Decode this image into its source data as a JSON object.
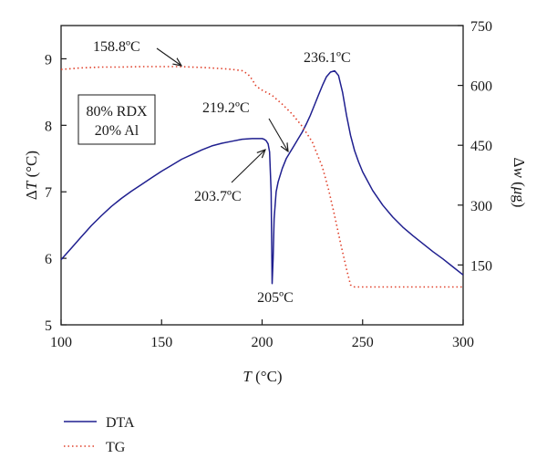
{
  "chart_data": {
    "type": "line",
    "xlabel_var": "T",
    "xlabel_unit": " (°C)",
    "ylabel_left_prefix": "Δ",
    "ylabel_left_var": "T",
    "ylabel_left_unit": " (°C)",
    "ylabel_right_prefix": "Δ",
    "ylabel_right_var": "w",
    "ylabel_right_unit_open": " (",
    "ylabel_right_unit_mu": "μ",
    "ylabel_right_unit_close": "g)",
    "xlim": [
      100,
      300
    ],
    "ylim_left": [
      5,
      9.5
    ],
    "ylim_right": [
      0,
      750
    ],
    "xticks": [
      "100",
      "150",
      "200",
      "250",
      "300"
    ],
    "yticks_left": [
      "5",
      "6",
      "7",
      "8",
      "9"
    ],
    "yticks_right": [
      "150",
      "300",
      "450",
      "600",
      "750"
    ],
    "series": [
      {
        "name": "DTA",
        "axis": "left",
        "color": "#1f1f8f",
        "style": "solid",
        "x": [
          100,
          105,
          110,
          115,
          120,
          125,
          130,
          135,
          140,
          145,
          150,
          155,
          160,
          165,
          170,
          175,
          180,
          185,
          190,
          195,
          200,
          201,
          202,
          203,
          203.7,
          204.5,
          205,
          205.5,
          206,
          207,
          208,
          210,
          212,
          214,
          216,
          218,
          220,
          222,
          224,
          226,
          228,
          230,
          232,
          234,
          236.1,
          238,
          240,
          242,
          244,
          246,
          248,
          250,
          255,
          260,
          265,
          270,
          275,
          280,
          285,
          290,
          295,
          300
        ],
        "y": [
          5.98,
          6.15,
          6.32,
          6.49,
          6.64,
          6.78,
          6.9,
          7.01,
          7.11,
          7.21,
          7.31,
          7.4,
          7.49,
          7.56,
          7.63,
          7.69,
          7.73,
          7.76,
          7.79,
          7.8,
          7.8,
          7.79,
          7.77,
          7.72,
          7.6,
          7.0,
          5.62,
          6.0,
          6.6,
          7.0,
          7.15,
          7.35,
          7.5,
          7.6,
          7.7,
          7.8,
          7.9,
          8.02,
          8.15,
          8.3,
          8.45,
          8.6,
          8.73,
          8.8,
          8.82,
          8.75,
          8.5,
          8.15,
          7.85,
          7.62,
          7.45,
          7.3,
          7.02,
          6.8,
          6.62,
          6.47,
          6.34,
          6.22,
          6.1,
          5.99,
          5.87,
          5.75
        ]
      },
      {
        "name": "TG",
        "axis": "right",
        "color": "#e0402a",
        "style": "dotted",
        "x": [
          100,
          110,
          120,
          130,
          140,
          150,
          158.8,
          165,
          170,
          180,
          185,
          190,
          193,
          195,
          197,
          200,
          205,
          210,
          215,
          220,
          225,
          230,
          233,
          236,
          239,
          242,
          244,
          246,
          248,
          255,
          260,
          270,
          280,
          290,
          300
        ],
        "y": [
          640,
          644,
          646,
          646,
          647,
          647,
          647,
          646,
          645,
          642,
          640,
          637,
          628,
          615,
          598,
          588,
          575,
          553,
          528,
          497,
          458,
          395,
          340,
          275,
          205,
          140,
          100,
          95,
          95,
          95,
          95,
          95,
          95,
          95,
          95
        ]
      }
    ],
    "legend": [
      {
        "label": "DTA"
      },
      {
        "label": "TG"
      }
    ],
    "legend_placement": "below-left",
    "sample_box": [
      "80% RDX",
      "20% Al"
    ],
    "annotations": [
      {
        "text": "158.8ºC"
      },
      {
        "text": "236.1ºC"
      },
      {
        "text": "219.2ºC"
      },
      {
        "text": "203.7ºC"
      },
      {
        "text": "205ºC"
      }
    ],
    "grid": false
  }
}
